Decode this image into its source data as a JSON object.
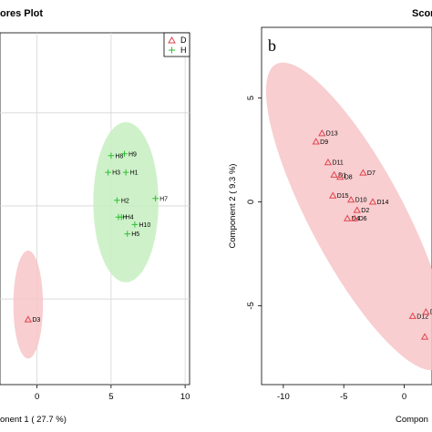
{
  "chart_data": [
    {
      "type": "scatter",
      "title": "ores Plot",
      "xlabel": "onent 1 ( 27.7 %)",
      "ylabel": "",
      "x_ticks": [
        0,
        5,
        10
      ],
      "y_ticks": [],
      "xlim": [
        -2.5,
        10.3
      ],
      "ylim": [
        -9.6,
        9.3
      ],
      "grid": true,
      "legend": {
        "position": "top-right",
        "entries": [
          {
            "name": "D",
            "marker": "triangle",
            "color": "#e0454f"
          },
          {
            "name": "H",
            "marker": "plus",
            "color": "#2fbf33"
          }
        ]
      },
      "ellipses": [
        {
          "group": "D",
          "cx": -0.6,
          "cy": -5.3,
          "rx": 1.0,
          "ry": 2.9,
          "angle": 0,
          "color": "#f7c5c8"
        },
        {
          "group": "H",
          "cx": 6.0,
          "cy": 0.2,
          "rx": 2.2,
          "ry": 4.3,
          "angle": 0,
          "color": "#c6efbf"
        }
      ],
      "series": [
        {
          "name": "D",
          "marker": "triangle",
          "color": "#e0454f",
          "points": [
            {
              "x": -0.6,
              "y": -6.1,
              "label": "D3"
            }
          ]
        },
        {
          "name": "H",
          "marker": "plus",
          "color": "#2fbf33",
          "points": [
            {
              "x": 5.0,
              "y": 2.7,
              "label": "H8"
            },
            {
              "x": 5.9,
              "y": 2.8,
              "label": "H9"
            },
            {
              "x": 4.8,
              "y": 1.8,
              "label": "H3"
            },
            {
              "x": 6.0,
              "y": 1.8,
              "label": "H1"
            },
            {
              "x": 8.0,
              "y": 0.4,
              "label": "H7"
            },
            {
              "x": 5.4,
              "y": 0.3,
              "label": "H2"
            },
            {
              "x": 5.7,
              "y": -0.6,
              "label": "H4"
            },
            {
              "x": 5.5,
              "y": -0.6,
              "label": "H"
            },
            {
              "x": 6.6,
              "y": -1.0,
              "label": "H10"
            },
            {
              "x": 6.1,
              "y": -1.5,
              "label": "H5"
            }
          ]
        }
      ]
    },
    {
      "type": "scatter",
      "title": "Scor",
      "panel_letter": "b",
      "xlabel": "Compon",
      "ylabel": "Component 2 ( 9.3 %)",
      "x_ticks": [
        -10,
        -5,
        0
      ],
      "y_ticks": [
        -5,
        0,
        5
      ],
      "xlim": [
        -11.8,
        2.3
      ],
      "ylim": [
        -8.8,
        8.4
      ],
      "grid": false,
      "ellipses": [
        {
          "group": "D",
          "cx": -3.9,
          "cy": -0.7,
          "rx": 3.9,
          "ry": 8.3,
          "angle": -28,
          "color": "#f7c5c8"
        }
      ],
      "series": [
        {
          "name": "D",
          "marker": "triangle",
          "color": "#e0454f",
          "points": [
            {
              "x": -6.8,
              "y": 3.3,
              "label": "D13"
            },
            {
              "x": -7.3,
              "y": 2.9,
              "label": "D9"
            },
            {
              "x": -6.3,
              "y": 1.9,
              "label": "D11"
            },
            {
              "x": -3.4,
              "y": 1.4,
              "label": "D7"
            },
            {
              "x": -5.8,
              "y": 1.3,
              "label": "D1"
            },
            {
              "x": -5.3,
              "y": 1.2,
              "label": "D8"
            },
            {
              "x": -5.9,
              "y": 0.3,
              "label": "D15"
            },
            {
              "x": -4.4,
              "y": 0.1,
              "label": "D10"
            },
            {
              "x": -2.6,
              "y": 0.0,
              "label": "D14"
            },
            {
              "x": -3.9,
              "y": -0.4,
              "label": "D2"
            },
            {
              "x": -4.7,
              "y": -0.8,
              "label": "D4"
            },
            {
              "x": -4.1,
              "y": -0.8,
              "label": "D6"
            },
            {
              "x": 0.7,
              "y": -5.5,
              "label": "D12"
            },
            {
              "x": 1.8,
              "y": -5.3,
              "label": "D"
            },
            {
              "x": 1.7,
              "y": -6.5,
              "label": ""
            }
          ]
        }
      ]
    }
  ]
}
